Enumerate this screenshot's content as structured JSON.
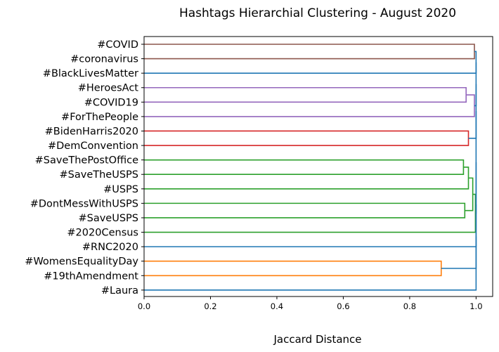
{
  "chart_data": {
    "type": "dendrogram",
    "title": "Hashtags Hierarchial Clustering - August 2020",
    "xlabel": "Jaccard Distance",
    "xlim": [
      0,
      1.05
    ],
    "xticks": [
      "0.0",
      "0.2",
      "0.4",
      "0.6",
      "0.8",
      "1.0"
    ],
    "xtick_values": [
      0,
      0.2,
      0.4,
      0.6,
      0.8,
      1.0
    ],
    "leaves": [
      "#COVID",
      "#coronavirus",
      "#BlackLivesMatter",
      "#HeroesAct",
      "#COVID19",
      "#ForThePeople",
      "#BidenHarris2020",
      "#DemConvention",
      "#SaveThePostOffice",
      "#SaveTheUSPS",
      "#USPS",
      "#DontMessWithUSPS",
      "#SaveUSPS",
      "#2020Census",
      "#RNC2020",
      "#WomensEqualityDay",
      "#19thAmendment",
      "#Laura"
    ],
    "merges": [
      {
        "a": "L0",
        "b": "L1",
        "distance": 0.995,
        "color": "#8c564b"
      },
      {
        "a": "L3",
        "b": "L4",
        "distance": 0.97,
        "color": "#9467bd"
      },
      {
        "a": "M1",
        "b": "L5",
        "distance": 0.995,
        "color": "#9467bd"
      },
      {
        "a": "L6",
        "b": "L7",
        "distance": 0.977,
        "color": "#d62728"
      },
      {
        "a": "L8",
        "b": "L9",
        "distance": 0.962,
        "color": "#2ca02c"
      },
      {
        "a": "M4",
        "b": "L10",
        "distance": 0.977,
        "color": "#2ca02c"
      },
      {
        "a": "L11",
        "b": "L12",
        "distance": 0.966,
        "color": "#2ca02c"
      },
      {
        "a": "M5",
        "b": "M6",
        "distance": 0.99,
        "color": "#2ca02c"
      },
      {
        "a": "M7",
        "b": "L13",
        "distance": 0.998,
        "color": "#2ca02c"
      },
      {
        "a": "L15",
        "b": "L16",
        "distance": 0.895,
        "color": "#ff7f0e"
      },
      {
        "a": "M0",
        "b": "L2",
        "distance": 1.0,
        "color": "#1f77b4"
      },
      {
        "a": "M10",
        "b": "M2",
        "distance": 1.0,
        "color": "#1f77b4"
      },
      {
        "a": "M11",
        "b": "M3",
        "distance": 1.0,
        "color": "#1f77b4"
      },
      {
        "a": "M12",
        "b": "M8",
        "distance": 1.0,
        "color": "#1f77b4"
      },
      {
        "a": "M13",
        "b": "L14",
        "distance": 1.0,
        "color": "#1f77b4"
      },
      {
        "a": "M14",
        "b": "M9",
        "distance": 1.0,
        "color": "#1f77b4"
      },
      {
        "a": "M15",
        "b": "L17",
        "distance": 1.0,
        "color": "#1f77b4"
      }
    ]
  }
}
